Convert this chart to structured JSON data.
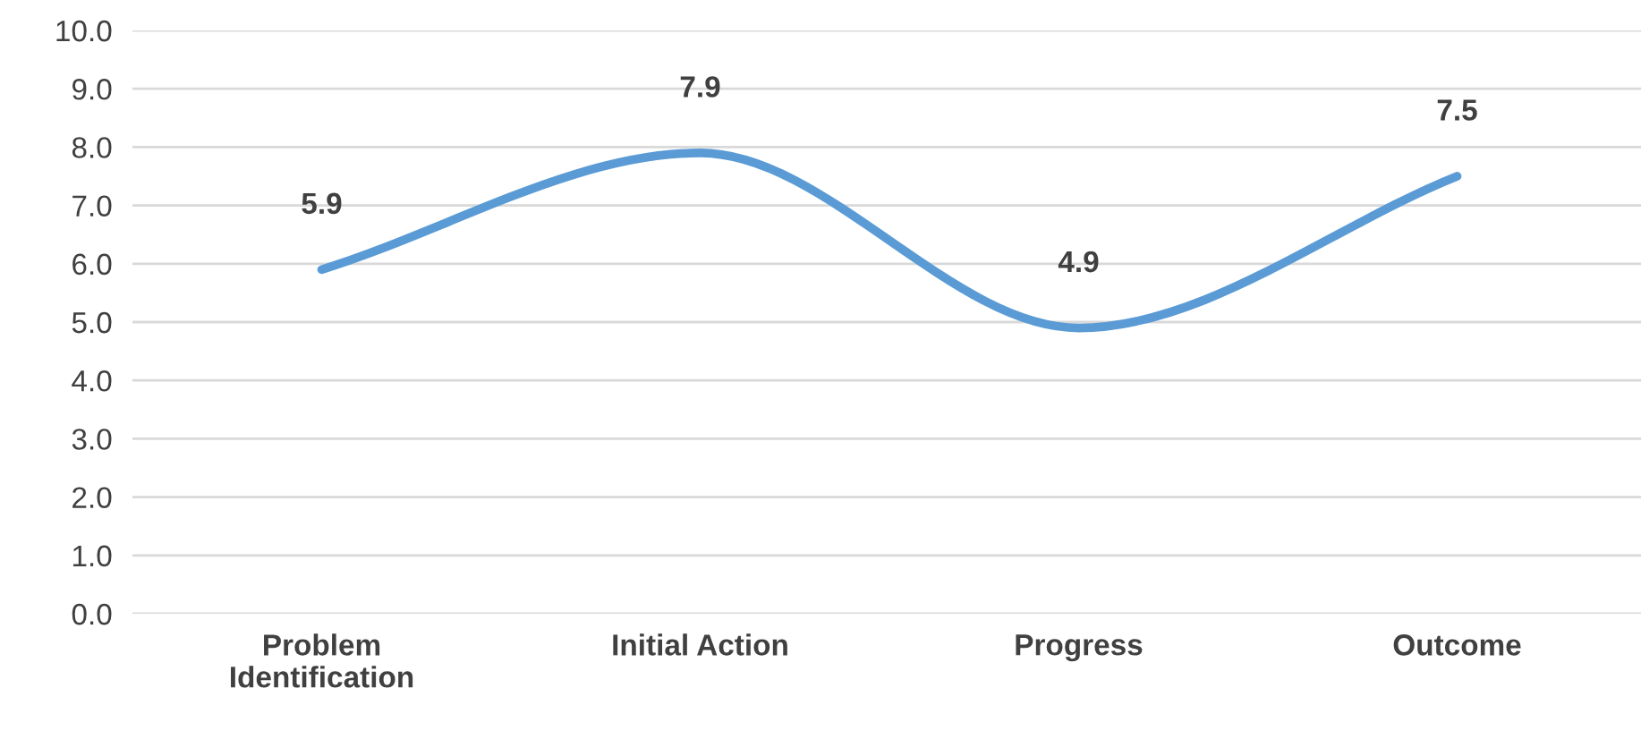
{
  "chart_data": {
    "type": "line",
    "categories": [
      "Problem\nIdentification",
      "Initial Action",
      "Progress",
      "Outcome"
    ],
    "series": [
      {
        "color": "#5b9bd5",
        "values": [
          5.9,
          7.9,
          4.9,
          7.5
        ]
      }
    ],
    "ylim": [
      0,
      10
    ],
    "yticks": [
      {
        "value": 0,
        "label": "0.0"
      },
      {
        "value": 1,
        "label": "1.0"
      },
      {
        "value": 2,
        "label": "2.0"
      },
      {
        "value": 3,
        "label": "3.0"
      },
      {
        "value": 4,
        "label": "4.0"
      },
      {
        "value": 5,
        "label": "5.0"
      },
      {
        "value": 6,
        "label": "6.0"
      },
      {
        "value": 7,
        "label": "7.0"
      },
      {
        "value": 8,
        "label": "8.0"
      },
      {
        "value": 9,
        "label": "9.0"
      },
      {
        "value": 10,
        "label": "10.0"
      }
    ],
    "grid": "y",
    "data_labels": true
  }
}
